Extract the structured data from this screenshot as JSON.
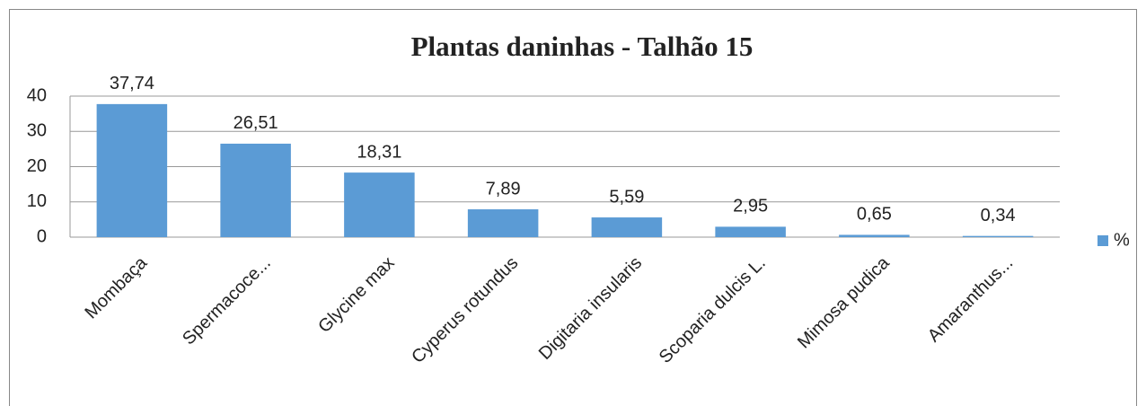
{
  "chart_data": {
    "type": "bar",
    "title": "Plantas daninhas - Talhão 15",
    "categories": [
      "Mombaça",
      "Spermacoce...",
      "Glycine max",
      "Cyperus rotundus",
      "Digitaria insularis",
      "Scoparia dulcis L.",
      "Mimosa pudica",
      "Amaranthus..."
    ],
    "series": [
      {
        "name": "%",
        "color": "#5b9bd5",
        "values": [
          37.74,
          26.51,
          18.31,
          7.89,
          5.59,
          2.95,
          0.65,
          0.34
        ],
        "value_labels": [
          "37,74",
          "26,51",
          "18,31",
          "7,89",
          "5,59",
          "2,95",
          "0,65",
          "0,34"
        ]
      }
    ],
    "ylim": [
      0,
      40
    ],
    "yticks": [
      0,
      10,
      20,
      30,
      40
    ],
    "grid": true,
    "legend": "right"
  }
}
